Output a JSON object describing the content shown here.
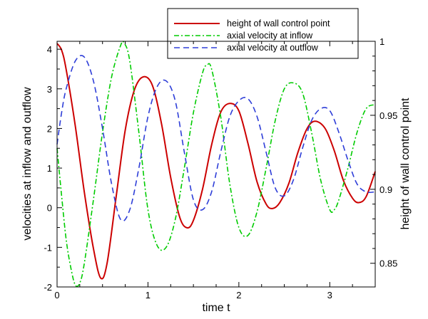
{
  "chart_data": {
    "type": "line",
    "title": "",
    "xlabel": "time t",
    "ylabel_left": "velocities at inflow and outflow",
    "ylabel_right": "height of wall control point",
    "xlim": [
      0,
      3.5
    ],
    "ylim_left": [
      -2,
      4.2
    ],
    "ylim_right": [
      0.834,
      1.0
    ],
    "x_ticks": [
      0,
      1,
      2,
      3
    ],
    "x_tick_labels": [
      "0",
      "1",
      "2",
      "3"
    ],
    "y_left_ticks": [
      -2,
      -1,
      0,
      1,
      2,
      3,
      4
    ],
    "y_left_tick_labels": [
      "-2",
      "-1",
      "0",
      "1",
      "2",
      "3",
      "4"
    ],
    "y_right_ticks": [
      0.85,
      0.9,
      0.95,
      1.0
    ],
    "y_right_tick_labels": [
      "0.85",
      "0.9",
      "0.95",
      "1"
    ],
    "grid": false,
    "legend_position": "top-right",
    "series": [
      {
        "name": "height of wall control point",
        "axis": "right",
        "color": "#cc0000",
        "dash": "solid",
        "x": [
          0,
          0.05,
          0.1,
          0.2,
          0.3,
          0.4,
          0.48,
          0.55,
          0.65,
          0.75,
          0.85,
          0.95,
          1.05,
          1.15,
          1.25,
          1.35,
          1.43,
          1.5,
          1.6,
          1.7,
          1.8,
          1.9,
          2.0,
          2.1,
          2.2,
          2.3,
          2.37,
          2.45,
          2.55,
          2.65,
          2.75,
          2.84,
          2.95,
          3.05,
          3.15,
          3.25,
          3.32,
          3.4,
          3.5
        ],
        "y": [
          0.9985,
          0.994,
          0.981,
          0.943,
          0.898,
          0.86,
          0.84,
          0.85,
          0.895,
          0.94,
          0.967,
          0.976,
          0.97,
          0.944,
          0.908,
          0.881,
          0.874,
          0.879,
          0.9,
          0.93,
          0.952,
          0.958,
          0.953,
          0.931,
          0.905,
          0.89,
          0.887,
          0.891,
          0.904,
          0.925,
          0.941,
          0.946,
          0.941,
          0.926,
          0.906,
          0.894,
          0.891,
          0.895,
          0.912
        ]
      },
      {
        "name": "axial velocity at inflow",
        "axis": "left",
        "color": "#00cc00",
        "dash": "dash-dot",
        "x": [
          0,
          0.05,
          0.1,
          0.15,
          0.2,
          0.25,
          0.3,
          0.4,
          0.5,
          0.6,
          0.7,
          0.74,
          0.8,
          0.9,
          1.0,
          1.1,
          1.2,
          1.3,
          1.4,
          1.5,
          1.6,
          1.65,
          1.7,
          1.8,
          1.9,
          2.0,
          2.1,
          2.2,
          2.3,
          2.4,
          2.5,
          2.6,
          2.7,
          2.8,
          2.9,
          3.0,
          3.05,
          3.1,
          3.2,
          3.3,
          3.4,
          3.5
        ],
        "y": [
          1.5,
          0.3,
          -0.8,
          -1.5,
          -1.95,
          -1.9,
          -1.4,
          0.2,
          1.9,
          3.3,
          4.1,
          4.15,
          3.7,
          1.9,
          -0.05,
          -0.95,
          -1.0,
          -0.3,
          1.0,
          2.4,
          3.4,
          3.6,
          3.5,
          2.3,
          0.6,
          -0.5,
          -0.7,
          -0.1,
          1.0,
          2.2,
          3.0,
          3.15,
          2.9,
          1.9,
          0.7,
          -0.05,
          -0.05,
          0.2,
          1.0,
          1.9,
          2.5,
          2.6
        ]
      },
      {
        "name": "axial velocity at outflow",
        "axis": "left",
        "color": "#2e3ed8",
        "dash": "dashed",
        "x": [
          0,
          0.05,
          0.1,
          0.2,
          0.3,
          0.4,
          0.5,
          0.6,
          0.7,
          0.8,
          0.9,
          1.0,
          1.1,
          1.2,
          1.3,
          1.4,
          1.5,
          1.6,
          1.7,
          1.8,
          1.9,
          2.0,
          2.1,
          2.2,
          2.3,
          2.4,
          2.5,
          2.6,
          2.7,
          2.8,
          2.9,
          3.0,
          3.1,
          3.2,
          3.3,
          3.4,
          3.5
        ],
        "y": [
          1.6,
          2.4,
          3.0,
          3.7,
          3.8,
          3.2,
          2.0,
          0.6,
          -0.3,
          -0.05,
          1.0,
          2.3,
          3.05,
          3.2,
          2.7,
          1.4,
          0.2,
          -0.05,
          0.4,
          1.4,
          2.3,
          2.7,
          2.75,
          2.3,
          1.4,
          0.5,
          0.3,
          0.7,
          1.5,
          2.2,
          2.5,
          2.45,
          1.9,
          1.2,
          0.6,
          0.4,
          0.4
        ]
      }
    ]
  }
}
